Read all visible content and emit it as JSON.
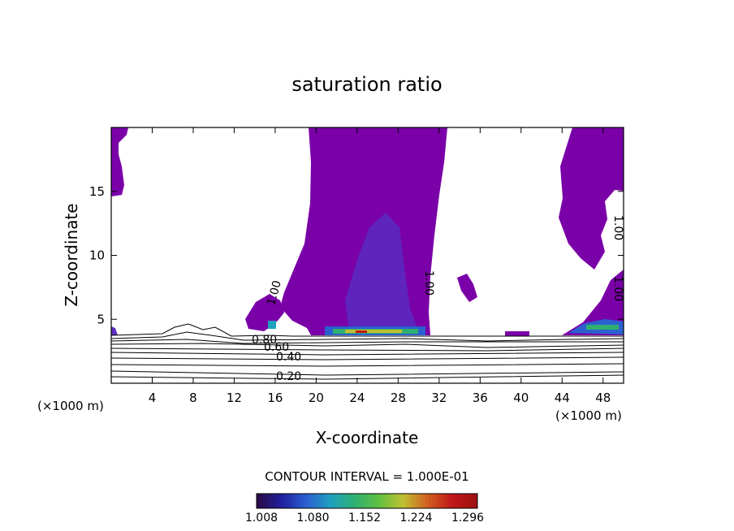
{
  "chart_data": {
    "type": "heatmap",
    "title": "saturation ratio",
    "xlabel": "X-coordinate",
    "ylabel": "Z-coordinate",
    "x_unit": "(×1000 m)",
    "x_unit_right": "(×1000 m)",
    "xlim": [
      0,
      50
    ],
    "ylim": [
      0,
      20
    ],
    "x_ticks": [
      4,
      8,
      12,
      16,
      20,
      24,
      28,
      32,
      36,
      40,
      44,
      48
    ],
    "y_ticks": [
      5,
      10,
      15
    ],
    "contour_interval_text": "CONTOUR INTERVAL = 1.000E-01",
    "contour_labels": [
      "1.00",
      "1.00",
      "1.00",
      "1.00",
      "0.80",
      "0.60",
      "0.40",
      "0.20"
    ],
    "colorbar": {
      "ticks": [
        "1.008",
        "1.080",
        "1.152",
        "1.224",
        "1.296"
      ],
      "colors": [
        "#2a0a4a",
        "#2020a0",
        "#2a60d0",
        "#20a0c0",
        "#30b070",
        "#60c040",
        "#c0c030",
        "#d06020",
        "#c01818",
        "#a01010"
      ]
    },
    "fill_color_base": "#7a00a8"
  }
}
